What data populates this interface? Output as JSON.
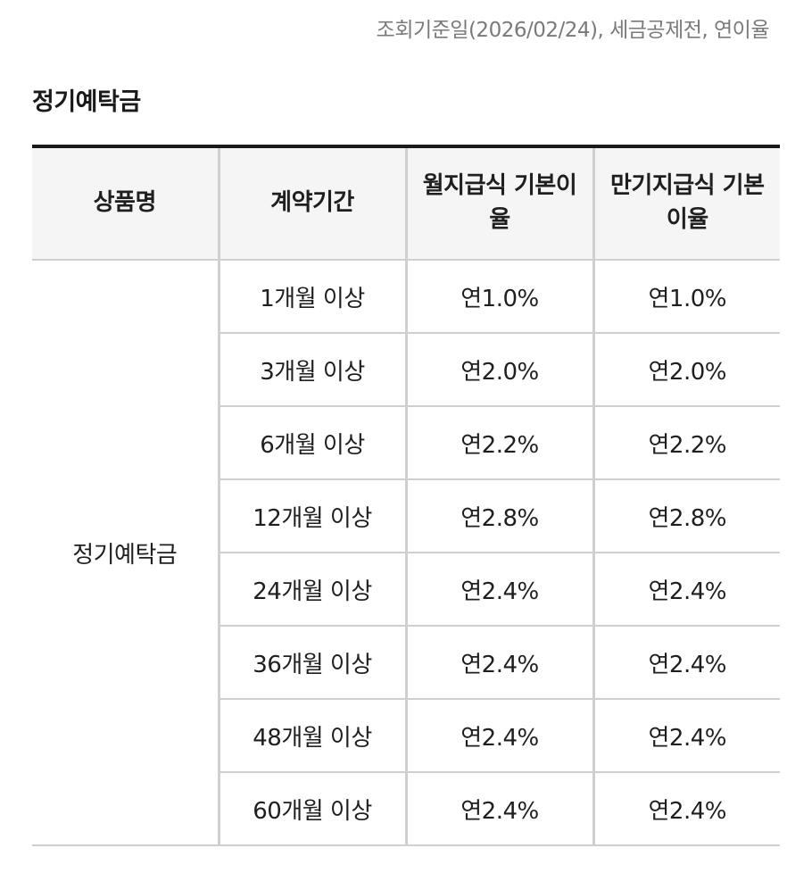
{
  "note": "조회기준일(2026/02/24), 세금공제전, 연이율",
  "section_title": "정기예탁금",
  "table": {
    "headers": [
      "상품명",
      "계약기간",
      "월지급식 기본이율",
      "만기지급식 기본이율"
    ],
    "product": "정기예탁금",
    "rows": [
      {
        "period": "1개월 이상",
        "monthly_rate": "연1.0%",
        "maturity_rate": "연1.0%"
      },
      {
        "period": "3개월 이상",
        "monthly_rate": "연2.0%",
        "maturity_rate": "연2.0%"
      },
      {
        "period": "6개월 이상",
        "monthly_rate": "연2.2%",
        "maturity_rate": "연2.2%"
      },
      {
        "period": "12개월 이상",
        "monthly_rate": "연2.8%",
        "maturity_rate": "연2.8%"
      },
      {
        "period": "24개월 이상",
        "monthly_rate": "연2.4%",
        "maturity_rate": "연2.4%"
      },
      {
        "period": "36개월 이상",
        "monthly_rate": "연2.4%",
        "maturity_rate": "연2.4%"
      },
      {
        "period": "48개월 이상",
        "monthly_rate": "연2.4%",
        "maturity_rate": "연2.4%"
      },
      {
        "period": "60개월 이상",
        "monthly_rate": "연2.4%",
        "maturity_rate": "연2.4%"
      }
    ]
  }
}
